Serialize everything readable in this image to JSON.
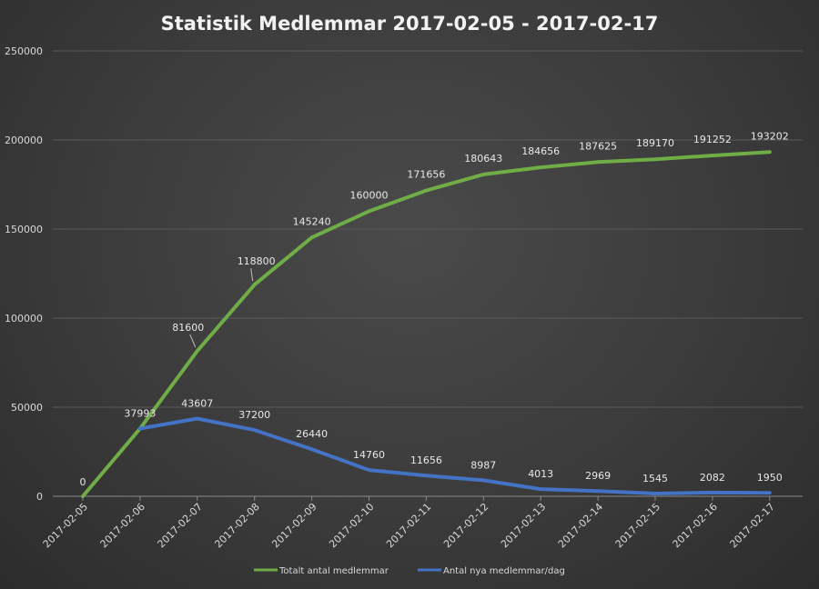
{
  "chart_data": {
    "type": "line",
    "title": "Statistik Medlemmar 2017-02-05 - 2017-02-17",
    "categories": [
      "2017-02-05",
      "2017-02-06",
      "2017-02-07",
      "2017-02-08",
      "2017-02-09",
      "2017-02-10",
      "2017-02-11",
      "2017-02-12",
      "2017-02-13",
      "2017-02-14",
      "2017-02-15",
      "2017-02-16",
      "2017-02-17"
    ],
    "ylim": [
      0,
      250000
    ],
    "yticks": [
      "0",
      "50000",
      "100000",
      "150000",
      "200000",
      "250000"
    ],
    "grid": true,
    "legend_position": "bottom",
    "series": [
      {
        "name": "Totalt antal medlemmar",
        "color": "#70ad47",
        "values": [
          0,
          37993,
          81600,
          118800,
          145240,
          160000,
          171656,
          180643,
          184656,
          187625,
          189170,
          191252,
          193202
        ],
        "labels": [
          "0",
          "",
          "81600",
          "118800",
          "145240",
          "160000",
          "171656",
          "180643",
          "184656",
          "187625",
          "189170",
          "191252",
          "193202"
        ]
      },
      {
        "name": "Antal nya medlemmar/dag",
        "color": "#4472c4",
        "values": [
          null,
          37993,
          43607,
          37200,
          26440,
          14760,
          11656,
          8987,
          4013,
          2969,
          1545,
          2082,
          1950
        ],
        "labels": [
          "",
          "37993",
          "43607",
          "37200",
          "26440",
          "14760",
          "11656",
          "8987",
          "4013",
          "2969",
          "1545",
          "2082",
          "1950"
        ]
      }
    ]
  }
}
